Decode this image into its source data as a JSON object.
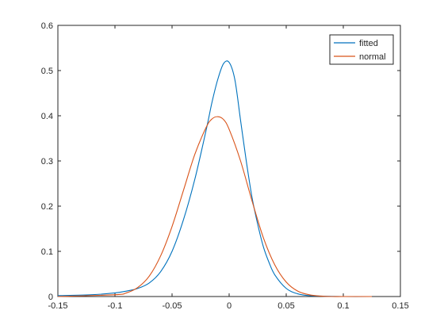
{
  "chart_data": {
    "type": "line",
    "title": "",
    "xlabel": "",
    "ylabel": "",
    "xlim": [
      -0.15,
      0.15
    ],
    "ylim": [
      0,
      0.6
    ],
    "xticks": [
      -0.15,
      -0.1,
      -0.05,
      0,
      0.05,
      0.1,
      0.15
    ],
    "yticks": [
      0,
      0.1,
      0.2,
      0.3,
      0.4,
      0.5,
      0.6
    ],
    "xtick_labels": [
      "-0.15",
      "-0.1",
      "-0.05",
      "0",
      "0.05",
      "0.1",
      "0.15"
    ],
    "ytick_labels": [
      "0",
      "0.1",
      "0.2",
      "0.3",
      "0.4",
      "0.5",
      "0.6"
    ],
    "grid": false,
    "legend_position": "top-right",
    "series": [
      {
        "name": "fitted",
        "color": "#0072BD",
        "x": [
          -0.15,
          -0.12,
          -0.1,
          -0.09,
          -0.08,
          -0.07,
          -0.06,
          -0.05,
          -0.04,
          -0.03,
          -0.02,
          -0.015,
          -0.01,
          -0.005,
          0,
          0.005,
          0.01,
          0.015,
          0.02,
          0.025,
          0.03,
          0.035,
          0.04,
          0.05,
          0.06,
          0.07,
          0.08,
          0.1,
          0.125
        ],
        "y": [
          0.002,
          0.004,
          0.008,
          0.012,
          0.018,
          0.03,
          0.055,
          0.1,
          0.17,
          0.26,
          0.37,
          0.43,
          0.48,
          0.515,
          0.518,
          0.48,
          0.39,
          0.3,
          0.22,
          0.16,
          0.11,
          0.075,
          0.048,
          0.018,
          0.006,
          0.002,
          0.001,
          0.0,
          0.0
        ]
      },
      {
        "name": "normal",
        "color": "#D95319",
        "x": [
          -0.15,
          -0.1,
          -0.09,
          -0.08,
          -0.07,
          -0.06,
          -0.05,
          -0.04,
          -0.03,
          -0.02,
          -0.015,
          -0.01,
          -0.005,
          0,
          0.01,
          0.02,
          0.03,
          0.04,
          0.05,
          0.06,
          0.07,
          0.08,
          0.09,
          0.1,
          0.125
        ],
        "y": [
          0.0,
          0.004,
          0.008,
          0.02,
          0.045,
          0.09,
          0.155,
          0.235,
          0.315,
          0.375,
          0.393,
          0.398,
          0.392,
          0.37,
          0.3,
          0.212,
          0.13,
          0.07,
          0.032,
          0.012,
          0.004,
          0.001,
          0.0,
          0.0,
          0.0
        ]
      }
    ]
  }
}
